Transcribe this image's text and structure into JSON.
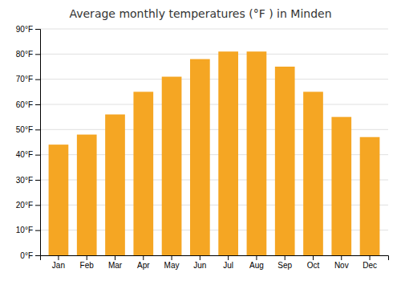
{
  "chart_data": {
    "type": "bar",
    "title": "Average monthly temperatures (°F ) in Minden",
    "categories": [
      "Jan",
      "Feb",
      "Mar",
      "Apr",
      "May",
      "Jun",
      "Jul",
      "Aug",
      "Sep",
      "Oct",
      "Nov",
      "Dec"
    ],
    "values": [
      44,
      48,
      56,
      65,
      71,
      78,
      81,
      81,
      75,
      65,
      55,
      47
    ],
    "color": "#F5A623",
    "ylim": [
      0,
      90
    ],
    "yticks": [
      {
        "value": 0,
        "label": "0°F"
      },
      {
        "value": 10,
        "label": "10°F"
      },
      {
        "value": 20,
        "label": "20°F"
      },
      {
        "value": 30,
        "label": "30°F"
      },
      {
        "value": 40,
        "label": "40°F"
      },
      {
        "value": 50,
        "label": "50°F"
      },
      {
        "value": 60,
        "label": "60°F"
      },
      {
        "value": 70,
        "label": "70°F"
      },
      {
        "value": 80,
        "label": "80°F"
      },
      {
        "value": 90,
        "label": "90°F"
      }
    ],
    "grid": true
  }
}
